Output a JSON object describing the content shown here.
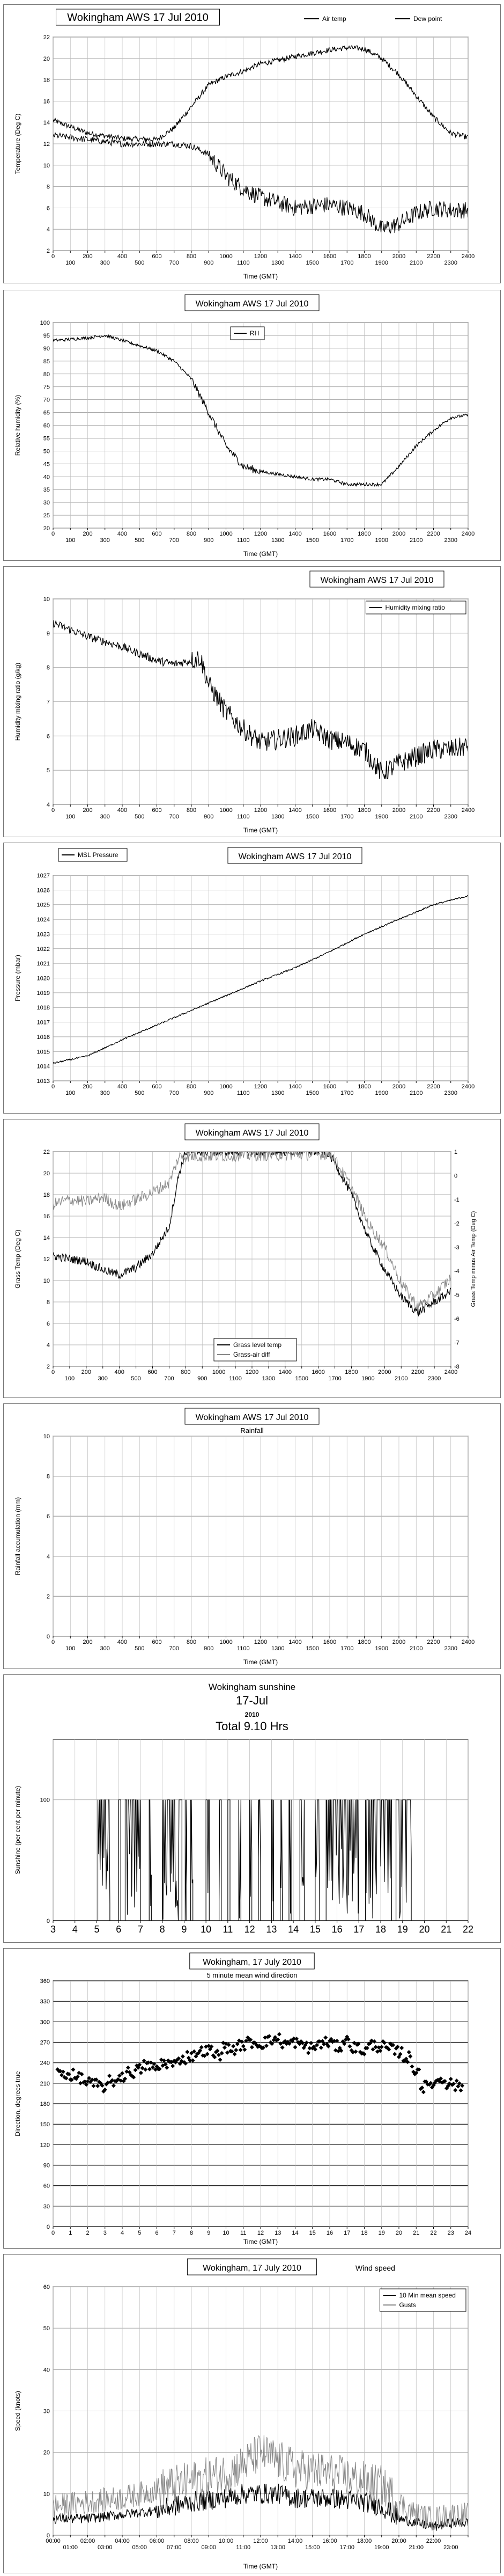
{
  "charts": [
    {
      "type": "line",
      "title": "Wokingham AWS 17 Jul 2010",
      "xlabel": "Time (GMT)",
      "ylabel": "Temperature (Deg C)",
      "xlim": [
        0,
        2400
      ],
      "ylim": [
        2,
        22
      ],
      "yticks": [
        2,
        4,
        6,
        8,
        10,
        12,
        14,
        16,
        18,
        20,
        22
      ],
      "xticks": [
        0,
        100,
        200,
        300,
        400,
        500,
        600,
        700,
        800,
        900,
        1000,
        1100,
        1200,
        1300,
        1400,
        1500,
        1600,
        1700,
        1800,
        1900,
        2000,
        2100,
        2200,
        2300,
        2400
      ],
      "legend": "top",
      "series": [
        {
          "name": "Air temp",
          "style": "solid",
          "x": [
            0,
            200,
            400,
            600,
            700,
            800,
            900,
            1000,
            1100,
            1200,
            1300,
            1400,
            1500,
            1600,
            1700,
            1800,
            1900,
            2000,
            2100,
            2200,
            2300,
            2400
          ],
          "y": [
            14.2,
            13.0,
            12.5,
            12.4,
            13.5,
            15.5,
            17.5,
            18.3,
            18.8,
            19.5,
            19.8,
            20.2,
            20.5,
            20.8,
            21.0,
            20.9,
            20.0,
            18.5,
            16.5,
            14.5,
            13.0,
            12.6
          ]
        },
        {
          "name": "Dew point",
          "style": "dashed",
          "x": [
            0,
            200,
            400,
            600,
            700,
            800,
            900,
            1000,
            1100,
            1200,
            1300,
            1400,
            1500,
            1600,
            1700,
            1800,
            1900,
            2000,
            2100,
            2200,
            2300,
            2400
          ],
          "y": [
            12.8,
            12.4,
            12.0,
            12.0,
            12.0,
            11.8,
            11.0,
            9.0,
            7.8,
            7.0,
            6.5,
            6.0,
            6.2,
            6.3,
            6.0,
            5.5,
            4.0,
            4.5,
            5.5,
            6.0,
            5.8,
            5.8
          ]
        }
      ]
    },
    {
      "type": "line",
      "title": "Wokingham AWS 17 Jul 2010",
      "xlabel": "Time (GMT)",
      "ylabel": "Relative humidity (%)",
      "xlim": [
        0,
        2400
      ],
      "ylim": [
        20,
        100
      ],
      "yticks": [
        20,
        25,
        30,
        35,
        40,
        45,
        50,
        55,
        60,
        65,
        70,
        75,
        80,
        85,
        90,
        95,
        100
      ],
      "xticks": [
        0,
        100,
        200,
        300,
        400,
        500,
        600,
        700,
        800,
        900,
        1000,
        1100,
        1200,
        1300,
        1400,
        1500,
        1600,
        1700,
        1800,
        1900,
        2000,
        2100,
        2200,
        2300,
        2400
      ],
      "legend": "top-center",
      "series": [
        {
          "name": "RH",
          "style": "solid",
          "x": [
            0,
            200,
            300,
            400,
            500,
            600,
            700,
            800,
            900,
            1000,
            1100,
            1200,
            1300,
            1400,
            1500,
            1600,
            1700,
            1800,
            1900,
            2000,
            2100,
            2200,
            2300,
            2400
          ],
          "y": [
            93,
            94,
            95,
            93,
            91,
            89,
            85,
            78,
            65,
            52,
            44,
            42,
            41,
            40,
            39,
            39,
            37,
            37,
            37,
            44,
            52,
            58,
            63,
            64
          ]
        }
      ]
    },
    {
      "type": "line",
      "title": "Wokingham AWS 17 Jul 2010",
      "xlabel": "Time (GMT)",
      "ylabel": "Humidity mixing ratio (g/kg)",
      "xlim": [
        0,
        2400
      ],
      "ylim": [
        4,
        10
      ],
      "yticks": [
        4,
        5,
        6,
        7,
        8,
        9,
        10
      ],
      "xticks": [
        0,
        100,
        200,
        300,
        400,
        500,
        600,
        700,
        800,
        900,
        1000,
        1100,
        1200,
        1300,
        1400,
        1500,
        1600,
        1700,
        1800,
        1900,
        2000,
        2100,
        2200,
        2300,
        2400
      ],
      "legend": "top-right",
      "series": [
        {
          "name": "Humidity mixing ratio",
          "style": "solid",
          "x": [
            0,
            200,
            400,
            600,
            700,
            800,
            850,
            900,
            1000,
            1100,
            1200,
            1300,
            1400,
            1500,
            1600,
            1700,
            1800,
            1900,
            2000,
            2100,
            2200,
            2300,
            2400
          ],
          "y": [
            9.3,
            8.9,
            8.6,
            8.2,
            8.1,
            8.2,
            8.3,
            7.5,
            6.7,
            6.2,
            5.8,
            5.9,
            6.0,
            6.2,
            5.9,
            5.8,
            5.6,
            4.9,
            5.2,
            5.4,
            5.6,
            5.6,
            5.7
          ]
        }
      ]
    },
    {
      "type": "line",
      "title": "Wokingham AWS 17 Jul 2010",
      "xlabel": "",
      "ylabel": "Pressure (mbar)",
      "xlim": [
        0,
        2400
      ],
      "ylim": [
        1013,
        1027
      ],
      "yticks": [
        1013,
        1014,
        1015,
        1016,
        1017,
        1018,
        1019,
        1020,
        1021,
        1022,
        1023,
        1024,
        1025,
        1026,
        1027
      ],
      "xticks": [
        0,
        100,
        200,
        300,
        400,
        500,
        600,
        700,
        800,
        900,
        1000,
        1100,
        1200,
        1300,
        1400,
        1500,
        1600,
        1700,
        1800,
        1900,
        2000,
        2100,
        2200,
        2300,
        2400
      ],
      "legend": "top-left",
      "series": [
        {
          "name": "MSL Pressure",
          "style": "solid",
          "x": [
            0,
            200,
            400,
            600,
            800,
            1000,
            1200,
            1400,
            1600,
            1800,
            2000,
            2200,
            2400
          ],
          "y": [
            1014.2,
            1014.7,
            1015.8,
            1016.8,
            1017.8,
            1018.8,
            1019.8,
            1020.7,
            1021.8,
            1023.0,
            1024.0,
            1025.0,
            1025.6
          ]
        }
      ]
    },
    {
      "type": "line",
      "title": "Wokingham AWS 17 Jul 2010",
      "xlabel": "",
      "ylabel": "Grass Temp (Deg C)",
      "y2label": "Grass Temp minus Air Temp (Deg C)",
      "xlim": [
        0,
        2400
      ],
      "ylim": [
        2,
        22
      ],
      "y2lim": [
        -8,
        1
      ],
      "yticks": [
        2,
        4,
        6,
        8,
        10,
        12,
        14,
        16,
        18,
        20,
        22
      ],
      "y2ticks": [
        -8,
        -7,
        -6,
        -5,
        -4,
        -3,
        -2,
        -1,
        0,
        1
      ],
      "xticks": [
        0,
        100,
        200,
        300,
        400,
        500,
        600,
        700,
        800,
        900,
        1000,
        1100,
        1200,
        1300,
        1400,
        1500,
        1600,
        1700,
        1800,
        1900,
        2000,
        2100,
        2200,
        2300,
        2400
      ],
      "legend": "bottom-right",
      "series": [
        {
          "name": "Grass level temp",
          "style": "solid",
          "x": [
            0,
            100,
            200,
            300,
            400,
            500,
            600,
            700,
            760,
            800,
            1650,
            1700,
            1800,
            1900,
            2000,
            2100,
            2200,
            2300,
            2400
          ],
          "y": [
            12.3,
            12.0,
            11.8,
            11.0,
            10.5,
            11.2,
            12.5,
            15.0,
            20.0,
            22.0,
            22.0,
            21.0,
            18.0,
            14.0,
            11.0,
            8.5,
            7.0,
            8.0,
            9.0
          ]
        },
        {
          "name": "Grass-air diff",
          "style": "grey",
          "x": [
            0,
            100,
            200,
            300,
            400,
            500,
            600,
            700,
            760,
            1680,
            1800,
            1900,
            2000,
            2100,
            2200,
            2300,
            2400
          ],
          "y": [
            -1.2,
            -1.0,
            -1.1,
            -0.9,
            -1.3,
            -1.0,
            -0.7,
            -0.3,
            0.8,
            0.9,
            -0.5,
            -2.0,
            -3.0,
            -4.5,
            -5.5,
            -5.0,
            -4.3
          ]
        }
      ]
    },
    {
      "type": "line",
      "title": "Wokingham AWS 17 Jul 2010",
      "subtitle": "Rainfall",
      "xlabel": "Time (GMT)",
      "ylabel": "Rainfall accumulation (mm)",
      "xlim": [
        0,
        2400
      ],
      "ylim": [
        0,
        10
      ],
      "yticks": [
        0,
        2,
        4,
        6,
        8,
        10
      ],
      "xticks": [
        0,
        100,
        200,
        300,
        400,
        500,
        600,
        700,
        800,
        900,
        1000,
        1100,
        1200,
        1300,
        1400,
        1500,
        1600,
        1700,
        1800,
        1900,
        2000,
        2100,
        2200,
        2300,
        2400
      ],
      "series": [
        {
          "name": "",
          "style": "solid",
          "x": [
            0,
            2400
          ],
          "y": [
            0,
            0
          ]
        }
      ]
    },
    {
      "type": "area",
      "title": "Wokingham sunshine",
      "subtitle_lines": [
        "17-Jul",
        "2010",
        "Total 9.10 Hrs"
      ],
      "xlabel": "",
      "ylabel": "Sunshine (per cent per minute)",
      "xlim": [
        3,
        22
      ],
      "ylim": [
        0,
        150
      ],
      "yticks": [
        0,
        100
      ],
      "xticks": [
        3,
        4,
        5,
        6,
        7,
        8,
        9,
        10,
        11,
        12,
        13,
        14,
        15,
        16,
        17,
        18,
        19,
        20,
        21,
        22
      ],
      "series": [
        {
          "name": "",
          "style": "spikes",
          "intervals": [
            [
              5.05,
              5.6
            ],
            [
              6.0,
              6.1
            ],
            [
              6.3,
              7.0
            ],
            [
              7.4,
              7.5
            ],
            [
              8.0,
              8.9
            ],
            [
              9.05,
              9.12
            ],
            [
              9.3,
              9.4
            ],
            [
              10.0,
              10.15
            ],
            [
              10.6,
              10.7
            ],
            [
              11.0,
              11.1
            ],
            [
              11.5,
              11.6
            ],
            [
              12.0,
              12.1
            ],
            [
              12.4,
              12.5
            ],
            [
              13.0,
              13.1
            ],
            [
              13.4,
              13.5
            ],
            [
              13.8,
              13.9
            ],
            [
              14.3,
              14.5
            ],
            [
              15.0,
              15.2
            ],
            [
              15.5,
              17.0
            ],
            [
              17.3,
              18.5
            ],
            [
              18.7,
              19.4
            ]
          ]
        }
      ]
    },
    {
      "type": "scatter",
      "title": "Wokingham, 17 July 2010",
      "subtitle": "5 minute mean wind direction",
      "xlabel": "Time (GMT)",
      "ylabel": "Direction, degrees true",
      "xlim": [
        0,
        24
      ],
      "ylim": [
        0,
        360
      ],
      "yticks": [
        0,
        30,
        60,
        90,
        120,
        150,
        180,
        210,
        240,
        270,
        300,
        330,
        360
      ],
      "xticks": [
        0,
        1,
        2,
        3,
        4,
        5,
        6,
        7,
        8,
        9,
        10,
        11,
        12,
        13,
        14,
        15,
        16,
        17,
        18,
        19,
        20,
        21,
        22,
        23,
        24
      ],
      "series": [
        {
          "name": "",
          "style": "diamonds",
          "x": [
            0.5,
            1.0,
            1.5,
            2.0,
            2.5,
            3.0,
            3.5,
            4.0,
            4.5,
            5.0,
            5.5,
            6.0,
            6.5,
            7.0,
            7.5,
            8.0,
            8.5,
            9.0,
            9.5,
            10.0,
            10.5,
            11.0,
            11.5,
            12.0,
            12.5,
            13.0,
            13.5,
            14.0,
            14.5,
            15.0,
            15.5,
            16.0,
            16.5,
            17.0,
            17.5,
            18.0,
            18.5,
            19.0,
            19.5,
            20.0,
            20.5,
            21.0,
            21.5,
            22.0,
            22.5,
            23.0,
            23.5
          ],
          "y": [
            225,
            222,
            218,
            212,
            208,
            205,
            213,
            220,
            226,
            230,
            236,
            232,
            240,
            238,
            246,
            250,
            256,
            258,
            252,
            262,
            260,
            266,
            270,
            268,
            272,
            275,
            268,
            270,
            265,
            262,
            268,
            270,
            264,
            272,
            262,
            258,
            266,
            264,
            260,
            256,
            248,
            230,
            205,
            210,
            216,
            210,
            206
          ]
        }
      ]
    },
    {
      "type": "line",
      "title": "Wokingham,  17 July 2010",
      "subtitle": "Wind speed",
      "xlabel": "Time (GMT)",
      "ylabel": "Speed (knots)",
      "xlim": [
        0,
        24
      ],
      "ylim": [
        0,
        60
      ],
      "yticks": [
        0,
        10,
        20,
        30,
        40,
        50,
        60
      ],
      "xticks": [
        0,
        1,
        2,
        3,
        4,
        5,
        6,
        7,
        8,
        9,
        10,
        11,
        12,
        13,
        14,
        15,
        16,
        17,
        18,
        19,
        20,
        21,
        22,
        23,
        24
      ],
      "xticklabels": [
        "00:00",
        "01:00",
        "02:00",
        "03:00",
        "04:00",
        "05:00",
        "06:00",
        "07:00",
        "08:00",
        "09:00",
        "10:00",
        "11:00",
        "12:00",
        "13:00",
        "14:00",
        "15:00",
        "16:00",
        "17:00",
        "18:00",
        "19:00",
        "20:00",
        "21:00",
        "22:00",
        "23:00",
        ""
      ],
      "legend": "top-right",
      "series": [
        {
          "name": "10 Min mean speed",
          "style": "solid",
          "x": [
            0,
            2,
            4,
            6,
            8,
            10,
            11,
            12,
            13,
            14,
            16,
            18,
            19,
            20,
            21,
            22,
            23,
            24
          ],
          "y": [
            4,
            4,
            5,
            6,
            8,
            9,
            10,
            10,
            10,
            9,
            9,
            8,
            7,
            4,
            3,
            2,
            3,
            3
          ]
        },
        {
          "name": "Gusts",
          "style": "grey",
          "x": [
            0,
            2,
            4,
            6,
            8,
            10,
            11,
            12,
            13,
            14,
            16,
            18,
            19,
            20,
            21,
            22,
            23,
            24
          ],
          "y": [
            7,
            8,
            9,
            11,
            13,
            15,
            17,
            20,
            18,
            16,
            15,
            13,
            12,
            8,
            5,
            4,
            5,
            5
          ]
        }
      ]
    }
  ],
  "panels": [
    {
      "top": 0
    },
    {
      "top": 0
    },
    {
      "top": 0
    },
    {
      "top": 0
    },
    {
      "top": 0
    },
    {
      "top": 0
    },
    {
      "top": 0
    },
    {
      "top": 0
    },
    {
      "top": 0
    }
  ]
}
